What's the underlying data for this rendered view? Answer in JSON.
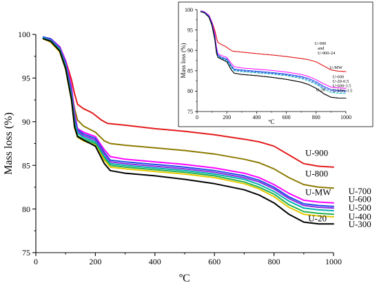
{
  "chart_data": [
    {
      "type": "line",
      "xlabel": "ºC",
      "ylabel": "Mass loss (%)",
      "xlim": [
        0,
        1000
      ],
      "ylim": [
        75,
        100
      ],
      "xticks": [
        0,
        200,
        400,
        600,
        800,
        1000
      ],
      "yticks": [
        75,
        80,
        85,
        90,
        95,
        100
      ],
      "grid": false,
      "series": [
        {
          "name": "U-900",
          "color": "#e31a1c",
          "x": [
            25,
            50,
            80,
            100,
            120,
            130,
            140,
            160,
            190,
            220,
            240,
            300,
            400,
            500,
            600,
            700,
            750,
            800,
            850,
            900,
            950,
            1000
          ],
          "y": [
            99.6,
            99.4,
            98.6,
            97,
            94.8,
            93.2,
            92,
            91.5,
            91,
            90.2,
            89.8,
            89.6,
            89.2,
            88.9,
            88.5,
            88,
            87.7,
            87.2,
            86.2,
            85.2,
            84.9,
            84.8
          ]
        },
        {
          "name": "U-800",
          "color": "#8b7a00",
          "x": [
            25,
            50,
            80,
            100,
            120,
            130,
            140,
            160,
            200,
            230,
            250,
            300,
            400,
            500,
            600,
            700,
            750,
            800,
            850,
            900,
            950,
            1000
          ],
          "y": [
            99.6,
            99.3,
            98.2,
            96.5,
            93.5,
            91.5,
            90.2,
            89.5,
            88.8,
            87.8,
            87.5,
            87.3,
            87,
            86.7,
            86.3,
            85.7,
            85.3,
            84.6,
            83.6,
            82.8,
            82.5,
            82.4
          ]
        },
        {
          "name": "U-MW",
          "color": "#ff00ff",
          "x": [
            25,
            50,
            80,
            100,
            120,
            130,
            140,
            160,
            200,
            230,
            250,
            300,
            400,
            500,
            600,
            700,
            750,
            800,
            850,
            900,
            950,
            1000
          ],
          "y": [
            99.7,
            99.5,
            98.6,
            97,
            94,
            91,
            89.2,
            88.8,
            88.3,
            86.8,
            86,
            85.7,
            85.4,
            85.1,
            84.7,
            84.1,
            83.6,
            82.8,
            81.8,
            81,
            80.8,
            80.7
          ]
        },
        {
          "name": "U-700",
          "color": "#1f4fe6",
          "x": [
            25,
            50,
            80,
            100,
            120,
            130,
            140,
            160,
            200,
            230,
            250,
            300,
            400,
            500,
            600,
            700,
            750,
            800,
            850,
            900,
            950,
            1000
          ],
          "y": [
            99.7,
            99.5,
            98.5,
            96.8,
            93.6,
            90.6,
            89.1,
            88.6,
            88.1,
            86.5,
            85.6,
            85.4,
            85.1,
            84.8,
            84.4,
            83.8,
            83.3,
            82.5,
            81.4,
            80.6,
            80.4,
            80.3
          ]
        },
        {
          "name": "U-600",
          "color": "#8a2be2",
          "x": [
            25,
            50,
            80,
            100,
            120,
            130,
            140,
            160,
            200,
            230,
            250,
            300,
            400,
            500,
            600,
            700,
            750,
            800,
            850,
            900,
            950,
            1000
          ],
          "y": [
            99.6,
            99.4,
            98.4,
            96.6,
            93.3,
            90.3,
            88.9,
            88.4,
            87.9,
            86.3,
            85.4,
            85.2,
            84.9,
            84.6,
            84.2,
            83.6,
            83.1,
            82.3,
            81.2,
            80.4,
            80.2,
            80.1
          ]
        },
        {
          "name": "U-500",
          "color": "#00b0b0",
          "x": [
            25,
            50,
            80,
            100,
            120,
            130,
            140,
            160,
            200,
            230,
            250,
            300,
            400,
            500,
            600,
            700,
            750,
            800,
            850,
            900,
            950,
            1000
          ],
          "y": [
            99.6,
            99.3,
            98.3,
            96.4,
            93,
            90,
            88.7,
            88.2,
            87.7,
            86,
            85.2,
            85,
            84.7,
            84.4,
            84,
            83.4,
            82.8,
            82,
            80.9,
            80.1,
            79.9,
            79.8
          ]
        },
        {
          "name": "U-400",
          "color": "#22b14c",
          "x": [
            25,
            50,
            80,
            100,
            120,
            130,
            140,
            160,
            200,
            230,
            250,
            300,
            400,
            500,
            600,
            700,
            750,
            800,
            850,
            900,
            950,
            1000
          ],
          "y": [
            99.5,
            99.2,
            98.2,
            96.2,
            92.7,
            89.6,
            88.4,
            88,
            87.5,
            85.8,
            85,
            84.8,
            84.5,
            84.2,
            83.8,
            83.1,
            82.5,
            81.7,
            80.5,
            79.7,
            79.5,
            79.4
          ]
        },
        {
          "name": "U-300",
          "color": "#e6c800",
          "x": [
            25,
            50,
            80,
            100,
            120,
            130,
            140,
            160,
            200,
            230,
            250,
            300,
            400,
            500,
            600,
            700,
            750,
            800,
            850,
            900,
            950,
            1000
          ],
          "y": [
            99.5,
            99.1,
            98,
            96,
            92.4,
            89.3,
            88.2,
            87.8,
            87.3,
            85.6,
            84.8,
            84.6,
            84.3,
            84,
            83.6,
            82.9,
            82.3,
            81.4,
            80.2,
            79.4,
            79.2,
            79.1
          ]
        },
        {
          "name": "U-20",
          "color": "#000000",
          "x": [
            25,
            50,
            80,
            100,
            120,
            130,
            140,
            160,
            200,
            230,
            250,
            300,
            400,
            500,
            600,
            700,
            750,
            800,
            850,
            900,
            950,
            1000
          ],
          "y": [
            99.5,
            99.2,
            98.1,
            96.1,
            92.5,
            89.4,
            88.3,
            87.9,
            87.2,
            85.2,
            84.4,
            84.1,
            83.8,
            83.4,
            82.9,
            82.2,
            81.6,
            80.7,
            79.4,
            78.5,
            78.3,
            78.3
          ]
        }
      ],
      "labels": [
        {
          "text": "U-900",
          "x": 905,
          "y": 86.1
        },
        {
          "text": "U-800",
          "x": 905,
          "y": 83.7
        },
        {
          "text": "U-MW",
          "x": 905,
          "y": 81.6
        },
        {
          "text": "U-700",
          "x": 1050,
          "y": 81.7
        },
        {
          "text": "U-600",
          "x": 1050,
          "y": 80.8
        },
        {
          "text": "U-500",
          "x": 1050,
          "y": 79.8
        },
        {
          "text": "U-400",
          "x": 1050,
          "y": 78.8
        },
        {
          "text": "U-20",
          "x": 915,
          "y": 78.6
        },
        {
          "text": "U-300",
          "x": 1050,
          "y": 77.9
        }
      ]
    },
    {
      "type": "line",
      "xlabel": "ºC",
      "ylabel": "Mass loss (%)",
      "xlim": [
        0,
        1000
      ],
      "ylim": [
        75,
        100
      ],
      "xticks": [
        0,
        200,
        400,
        600,
        800,
        1000
      ],
      "yticks": [
        75,
        80,
        85,
        90,
        95,
        100
      ],
      "grid": false,
      "series": [
        {
          "name": "U-900",
          "color": "#e31a1c",
          "style": "solid",
          "x": [
            25,
            50,
            80,
            100,
            120,
            130,
            140,
            160,
            190,
            220,
            240,
            300,
            400,
            500,
            600,
            700,
            750,
            800,
            850,
            900,
            950,
            1000
          ],
          "y": [
            99.6,
            99.4,
            98.6,
            97,
            94.8,
            93.2,
            92,
            91.5,
            91,
            90.2,
            89.8,
            89.6,
            89.2,
            88.9,
            88.5,
            88,
            87.7,
            87.2,
            86.2,
            85.2,
            84.9,
            84.8
          ]
        },
        {
          "name": "U-900-24",
          "color": "#e31a1c",
          "style": "solid",
          "x": [
            25,
            50,
            80,
            100,
            120,
            130,
            140,
            160,
            190,
            220,
            240,
            300,
            400,
            500,
            600,
            700,
            750,
            800,
            850,
            900,
            950,
            1000
          ],
          "y": [
            99.6,
            99.4,
            98.6,
            97,
            94.8,
            93.2,
            92,
            91.5,
            91,
            90.2,
            89.8,
            89.6,
            89.2,
            88.9,
            88.5,
            88,
            87.7,
            87.2,
            86.2,
            85.2,
            84.9,
            84.8
          ]
        },
        {
          "name": "U-MW",
          "color": "#ff00ff",
          "style": "solid",
          "x": [
            25,
            50,
            80,
            100,
            120,
            130,
            140,
            160,
            200,
            230,
            250,
            300,
            400,
            500,
            600,
            700,
            750,
            800,
            850,
            900,
            950,
            1000
          ],
          "y": [
            99.7,
            99.5,
            98.6,
            97,
            94,
            91,
            89.2,
            88.8,
            88.3,
            86.8,
            86,
            85.7,
            85.4,
            85.1,
            84.7,
            84.1,
            83.6,
            82.8,
            81.8,
            81,
            80.8,
            80.7
          ]
        },
        {
          "name": "U-600",
          "color": "#1f4fe6",
          "style": "solid",
          "x": [
            25,
            50,
            80,
            100,
            120,
            130,
            140,
            160,
            200,
            230,
            250,
            300,
            400,
            500,
            600,
            700,
            750,
            800,
            850,
            900,
            950,
            1000
          ],
          "y": [
            99.6,
            99.4,
            98.4,
            96.6,
            93.3,
            90.3,
            88.9,
            88.4,
            87.9,
            86.3,
            85.4,
            85.2,
            84.9,
            84.6,
            84.2,
            83.6,
            83.1,
            82.3,
            81.2,
            80.4,
            80.2,
            80.1
          ]
        },
        {
          "name": "U-20-0.5",
          "color": "#1f4fe6",
          "style": "dashed",
          "x": [
            25,
            50,
            80,
            100,
            120,
            130,
            140,
            160,
            200,
            230,
            250,
            300,
            400,
            500,
            600,
            700,
            750,
            800,
            850,
            900,
            950,
            1000
          ],
          "y": [
            99.6,
            99.3,
            98.3,
            96.4,
            93,
            90,
            88.7,
            88.2,
            87.7,
            86,
            85.2,
            85,
            84.7,
            84.4,
            84,
            83.4,
            82.8,
            82,
            80.9,
            80.1,
            79.9,
            79.8
          ]
        },
        {
          "name": "U-600-3.5",
          "color": "#00b0b0",
          "style": "dashed",
          "x": [
            25,
            50,
            80,
            100,
            120,
            130,
            140,
            160,
            200,
            230,
            250,
            300,
            400,
            500,
            600,
            700,
            750,
            800,
            850,
            900,
            950,
            1000
          ],
          "y": [
            99.5,
            99.2,
            98.2,
            96.2,
            92.7,
            89.6,
            88.4,
            88,
            87.5,
            85.8,
            85,
            84.8,
            84.5,
            84.2,
            83.8,
            83.1,
            82.5,
            81.7,
            80.5,
            79.7,
            79.5,
            79.4
          ]
        },
        {
          "name": "U-20",
          "color": "#000000",
          "style": "solid",
          "x": [
            25,
            50,
            80,
            100,
            120,
            130,
            140,
            160,
            200,
            230,
            250,
            300,
            400,
            500,
            600,
            700,
            750,
            800,
            850,
            900,
            950,
            1000
          ],
          "y": [
            99.5,
            99.2,
            98.1,
            96.1,
            92.5,
            89.4,
            88.3,
            87.9,
            87.2,
            85.2,
            84.4,
            84.1,
            83.8,
            83.4,
            82.9,
            82.2,
            81.6,
            80.7,
            79.4,
            78.5,
            78.3,
            78.3
          ]
        },
        {
          "name": "U-MW-3.5",
          "color": "#000000",
          "style": "solid",
          "x": [
            25,
            50,
            80,
            100,
            120,
            130,
            140,
            160,
            200,
            230,
            250,
            300,
            400,
            500,
            600,
            700,
            750,
            800,
            850,
            900,
            950,
            1000
          ],
          "y": [
            99.5,
            99.2,
            98.1,
            96.1,
            92.5,
            89.4,
            88.3,
            87.9,
            87.2,
            85.2,
            84.4,
            84.1,
            83.8,
            83.4,
            82.9,
            82.2,
            81.6,
            80.7,
            79.4,
            78.5,
            78.3,
            78.3
          ]
        }
      ],
      "labels": [
        {
          "text": "U-900",
          "x": 790,
          "y": 91.4
        },
        {
          "text": "and",
          "x": 810,
          "y": 90.2
        },
        {
          "text": "U-900-24",
          "x": 810,
          "y": 89.0
        },
        {
          "text": "U-MW",
          "x": 890,
          "y": 85.5
        },
        {
          "text": "U-600",
          "x": 910,
          "y": 83.2
        },
        {
          "text": "U-20-0.5",
          "x": 910,
          "y": 82.1
        },
        {
          "text": "U-600-3.5",
          "x": 910,
          "y": 81.0
        },
        {
          "text": "U-20",
          "x": 800,
          "y": 80.0
        },
        {
          "text": "U-MW-3.5",
          "x": 910,
          "y": 79.8
        }
      ]
    }
  ]
}
